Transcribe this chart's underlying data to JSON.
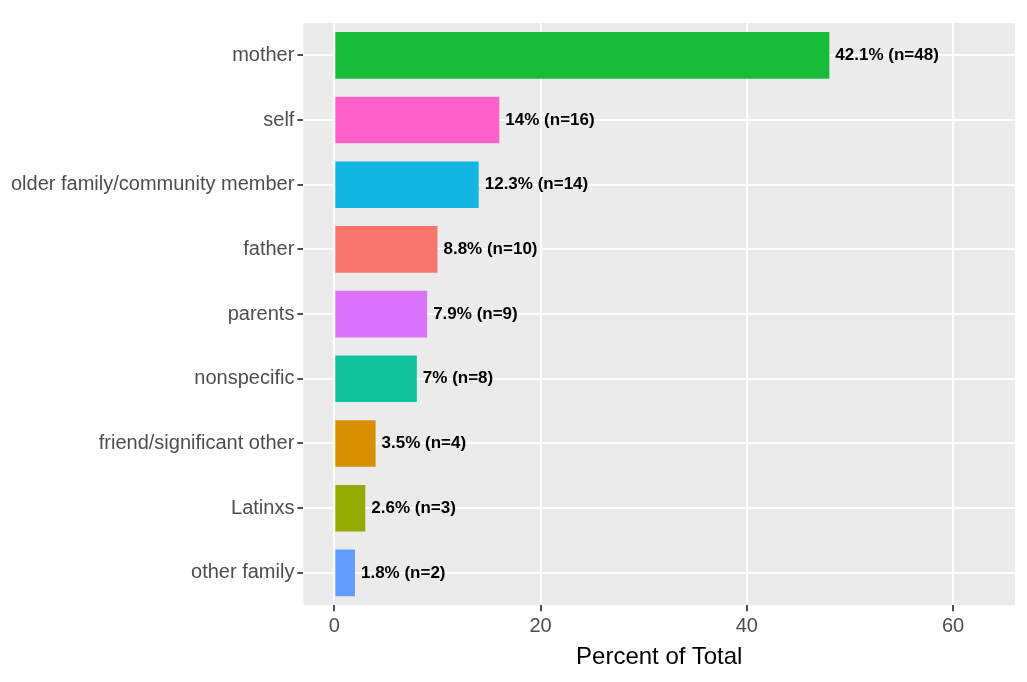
{
  "chart_data": {
    "type": "bar",
    "orientation": "horizontal",
    "xlabel": "Percent of Total",
    "categories": [
      "mother",
      "self",
      "older family/community member",
      "father",
      "parents",
      "nonspecific",
      "friend/significant other",
      "Latinxs",
      "other family"
    ],
    "values": [
      48,
      16,
      14,
      10,
      9,
      8,
      4,
      3,
      2
    ],
    "value_labels": [
      "42.1% (n=48)",
      "14% (n=16)",
      "12.3% (n=14)",
      "8.8% (n=10)",
      "7.9% (n=9)",
      "7% (n=8)",
      "3.5% (n=4)",
      "2.6% (n=3)",
      "1.8% (n=2)"
    ],
    "colors": [
      "#17bd3a",
      "#ff61c9",
      "#13b6e3",
      "#f8766d",
      "#db72fb",
      "#12c19d",
      "#d89000",
      "#93aa00",
      "#619cff"
    ],
    "xlim": [
      -3,
      66
    ],
    "xticks": [
      0,
      20,
      40,
      60
    ],
    "grid": true,
    "legend": false
  }
}
